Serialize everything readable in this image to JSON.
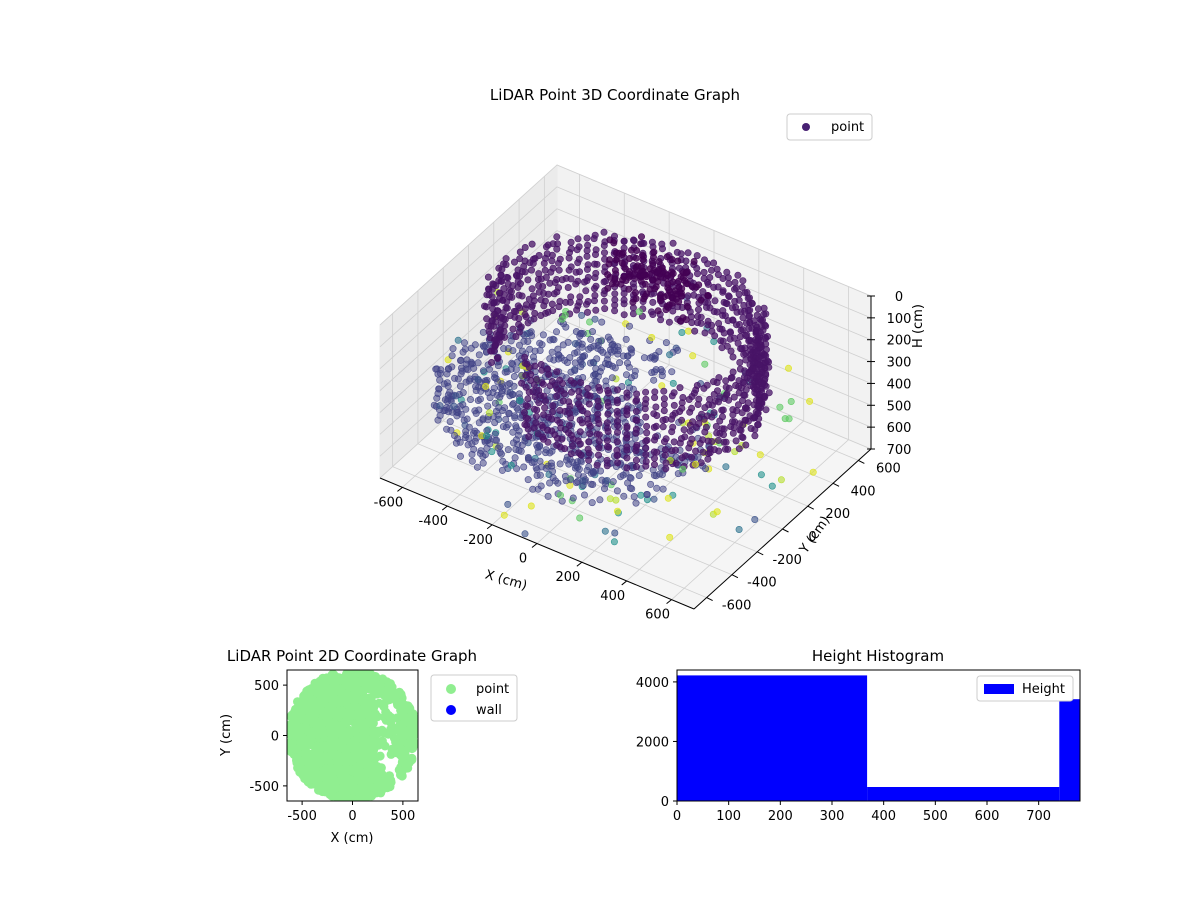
{
  "chart_data": [
    {
      "type": "scatter",
      "title": "LiDAR Point 3D Coordinate Graph",
      "xlabel": "X (cm)",
      "ylabel": "Y (cm)",
      "zlabel": "H (cm)",
      "xlim": [
        -700,
        700
      ],
      "ylim": [
        -700,
        700
      ],
      "zlim": [
        700,
        0
      ],
      "xticks": [
        -600,
        -400,
        -200,
        0,
        200,
        400,
        600
      ],
      "yticks": [
        -600,
        -400,
        -200,
        0,
        200,
        400,
        600
      ],
      "zticks": [
        0,
        100,
        200,
        300,
        400,
        500,
        600,
        700
      ],
      "zaxis_inverted": true,
      "colormap": "viridis",
      "grid": true,
      "legend": {
        "position": "top-right",
        "entries": [
          {
            "label": "point",
            "color": "#482173"
          }
        ]
      },
      "series": [
        {
          "name": "point",
          "shape": "ring",
          "radius_cm": 560,
          "height_range_cm": [
            0,
            380
          ],
          "color": "#481467"
        },
        {
          "shape": "disk",
          "radius_cm": 560,
          "height_range_cm": [
            380,
            520
          ],
          "color": "#414487"
        },
        {
          "shape": "cluster",
          "center_cm": [
            -100,
            400
          ],
          "height_range_cm": [
            0,
            200
          ],
          "color": "#440154"
        },
        {
          "shape": "scatter",
          "height_range_cm": [
            300,
            700
          ],
          "colors": [
            "#3b528b",
            "#2c728e",
            "#21918c",
            "#5ec962",
            "#b5de2b",
            "#dde318"
          ]
        }
      ]
    },
    {
      "type": "scatter",
      "title": "LiDAR Point 2D Coordinate Graph",
      "xlabel": "X (cm)",
      "ylabel": "Y (cm)",
      "xlim": [
        -650,
        650
      ],
      "ylim": [
        -650,
        650
      ],
      "xticks": [
        -500,
        0,
        500
      ],
      "yticks": [
        -500,
        0,
        500
      ],
      "legend": {
        "position": "right",
        "entries": [
          {
            "label": "point",
            "color": "#90ee90"
          },
          {
            "label": "wall",
            "color": "#0000ff"
          }
        ]
      }
    },
    {
      "type": "bar",
      "title": "Height Histogram",
      "xlim": [
        0,
        780
      ],
      "ylim": [
        0,
        4400
      ],
      "xticks": [
        0,
        100,
        200,
        300,
        400,
        500,
        600,
        700
      ],
      "yticks": [
        0,
        2000,
        4000
      ],
      "color": "#0000ff",
      "legend": {
        "position": "top-right",
        "entries": [
          {
            "label": "Height",
            "color": "#0000ff"
          }
        ]
      },
      "bins": [
        {
          "x0": 0,
          "x1": 368,
          "value": 4220
        },
        {
          "x0": 368,
          "x1": 740,
          "value": 470
        },
        {
          "x0": 740,
          "x1": 780,
          "value": 3420
        }
      ]
    }
  ]
}
